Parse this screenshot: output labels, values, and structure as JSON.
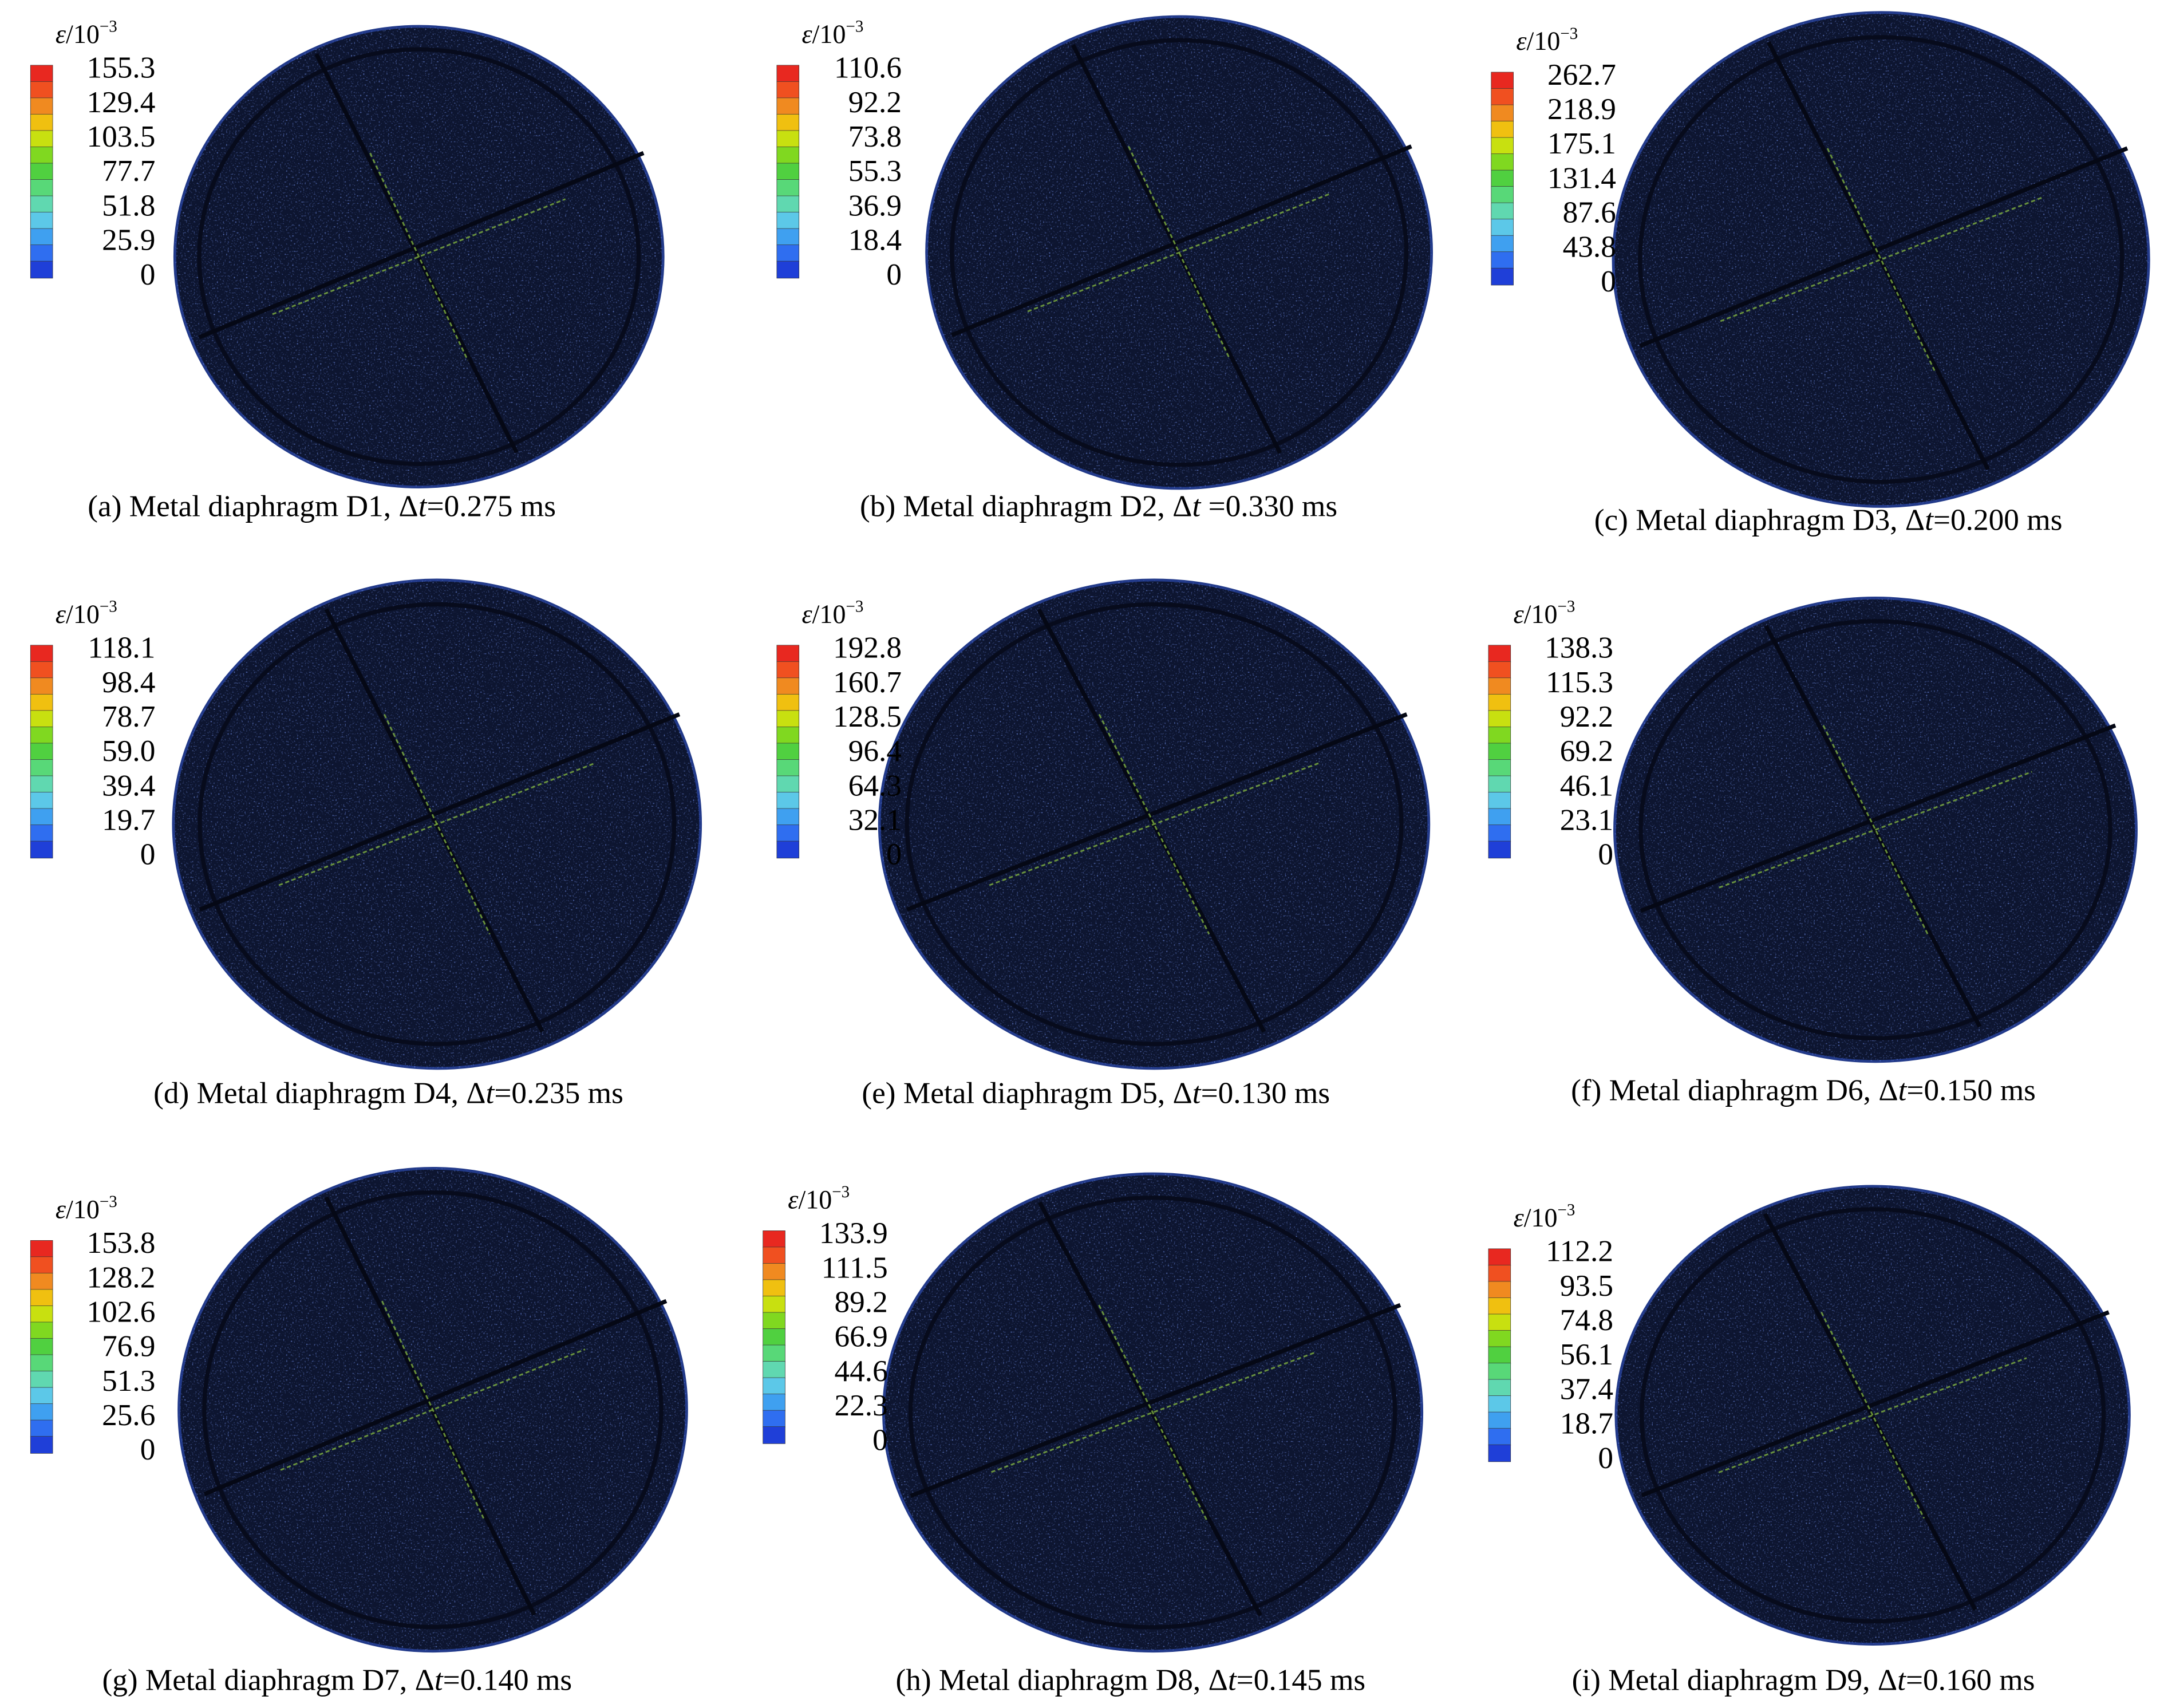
{
  "panels": [
    {
      "legend_label": {
        "symbol": "ε",
        "base": "/10",
        "exponent": "−3"
      },
      "legend_ticks": [
        "155.3",
        "129.4",
        "103.5",
        "77.7",
        "51.8",
        "25.9",
        "0"
      ],
      "caption": {
        "prefix": "(a) Metal diaphragm D1, Δ",
        "italic": "t",
        "suffix": "=0.275 ms"
      }
    },
    {
      "legend_label": {
        "symbol": "ε",
        "base": "/10",
        "exponent": "−3"
      },
      "legend_ticks": [
        "110.6",
        "92.2",
        "73.8",
        "55.3",
        "36.9",
        "18.4",
        "0"
      ],
      "caption": {
        "prefix": "(b) Metal diaphragm D2, Δ",
        "italic": "t",
        "suffix": " =0.330 ms"
      }
    },
    {
      "legend_label": {
        "symbol": "ε",
        "base": "/10",
        "exponent": "−3"
      },
      "legend_ticks": [
        "262.7",
        "218.9",
        "175.1",
        "131.4",
        "87.6",
        "43.8",
        "0"
      ],
      "caption": {
        "prefix": "(c) Metal diaphragm D3, Δ",
        "italic": "t",
        "suffix": "=0.200 ms"
      }
    },
    {
      "legend_label": {
        "symbol": "ε",
        "base": "/10",
        "exponent": "−3"
      },
      "legend_ticks": [
        "118.1",
        "98.4",
        "78.7",
        "59.0",
        "39.4",
        "19.7",
        "0"
      ],
      "caption": {
        "prefix": "(d) Metal diaphragm D4, Δ",
        "italic": "t",
        "suffix": "=0.235 ms"
      }
    },
    {
      "legend_label": {
        "symbol": "ε",
        "base": "/10",
        "exponent": "−3"
      },
      "legend_ticks": [
        "192.8",
        "160.7",
        "128.5",
        "96.4",
        "64.3",
        "32.1",
        "0"
      ],
      "caption": {
        "prefix": "(e) Metal diaphragm D5, Δ",
        "italic": "t",
        "suffix": "=0.130 ms"
      }
    },
    {
      "legend_label": {
        "symbol": "ε",
        "base": "/10",
        "exponent": "−3"
      },
      "legend_ticks": [
        "138.3",
        "115.3",
        "92.2",
        "69.2",
        "46.1",
        "23.1",
        "0"
      ],
      "caption": {
        "prefix": "(f) Metal diaphragm D6, Δ",
        "italic": "t",
        "suffix": "=0.150 ms"
      }
    },
    {
      "legend_label": {
        "symbol": "ε",
        "base": "/10",
        "exponent": "−3"
      },
      "legend_ticks": [
        "153.8",
        "128.2",
        "102.6",
        "76.9",
        "51.3",
        "25.6",
        "0"
      ],
      "caption": {
        "prefix": "(g) Metal diaphragm  D7, Δ",
        "italic": "t",
        "suffix": "=0.140 ms"
      }
    },
    {
      "legend_label": {
        "symbol": "ε",
        "base": "/10",
        "exponent": "−3"
      },
      "legend_ticks": [
        "133.9",
        "111.5",
        "89.2",
        "66.9",
        "44.6",
        "22.3",
        "0"
      ],
      "caption": {
        "prefix": "(h)  Metal diaphragm D8, Δ",
        "italic": "t",
        "suffix": "=0.145 ms"
      }
    },
    {
      "legend_label": {
        "symbol": "ε",
        "base": "/10",
        "exponent": "−3"
      },
      "legend_ticks": [
        "112.2",
        "93.5",
        "74.8",
        "56.1",
        "37.4",
        "18.7",
        "0"
      ],
      "caption": {
        "prefix": "(i)  Metal diaphragm D9, Δ",
        "italic": "t",
        "suffix": "=0.160 ms"
      }
    }
  ]
}
